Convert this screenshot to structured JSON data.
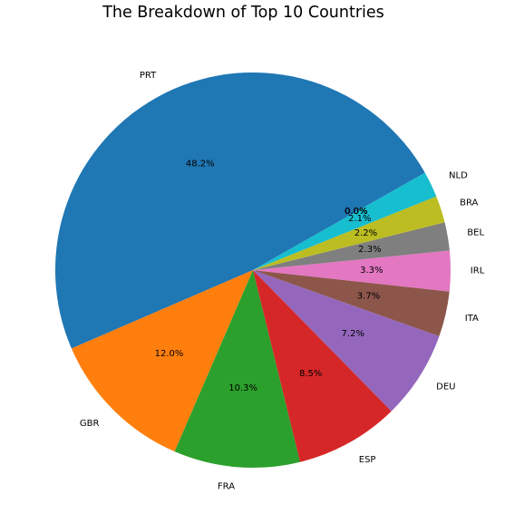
{
  "chart_data": {
    "type": "pie",
    "title": "The Breakdown of Top 10 Countries",
    "start_angle_deg": 29.5,
    "direction": "counterclockwise",
    "slices": [
      {
        "label": "PRT",
        "percent": 48.2,
        "pct_text": "48.2%",
        "color": "#1f77b4"
      },
      {
        "label": "GBR",
        "percent": 12.0,
        "pct_text": "12.0%",
        "color": "#ff7f0e"
      },
      {
        "label": "FRA",
        "percent": 10.3,
        "pct_text": "10.3%",
        "color": "#2ca02c"
      },
      {
        "label": "ESP",
        "percent": 8.5,
        "pct_text": "8.5%",
        "color": "#d62728"
      },
      {
        "label": "DEU",
        "percent": 7.2,
        "pct_text": "7.2%",
        "color": "#9467bd"
      },
      {
        "label": "ITA",
        "percent": 3.7,
        "pct_text": "3.7%",
        "color": "#8c564b"
      },
      {
        "label": "IRL",
        "percent": 3.3,
        "pct_text": "3.3%",
        "color": "#e377c2"
      },
      {
        "label": "BEL",
        "percent": 2.3,
        "pct_text": "2.3%",
        "color": "#7f7f7f"
      },
      {
        "label": "BRA",
        "percent": 2.2,
        "pct_text": "2.2%",
        "color": "#bcbd22"
      },
      {
        "label": "NLD",
        "percent": 2.1,
        "pct_text": "2.1%",
        "color": "#17becf"
      },
      {
        "label": "",
        "percent": 0.0,
        "pct_text": "0.0%",
        "color": "#1f77b4"
      },
      {
        "label": "",
        "percent": 0.0,
        "pct_text": "0.0%",
        "color": "#ff7f0e"
      },
      {
        "label": "",
        "percent": 0.0,
        "pct_text": "0.0%",
        "color": "#2ca02c"
      },
      {
        "label": "",
        "percent": 0.0,
        "pct_text": "0.0%",
        "color": "#d62728"
      },
      {
        "label": "",
        "percent": 0.0,
        "pct_text": "0.0%",
        "color": "#9467bd"
      }
    ]
  }
}
